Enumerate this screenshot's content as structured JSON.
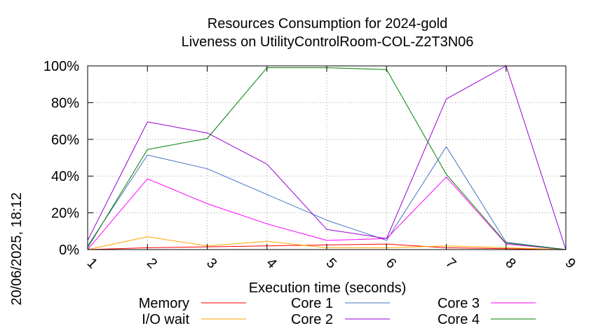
{
  "chart_data": {
    "type": "line",
    "title": "Resources Consumption for 2024-gold",
    "subtitle": "Liveness on UtilityControlRoom-COL-Z2T3N06",
    "xlabel": "Execution time (seconds)",
    "ylabel": "",
    "side_label": "20/06/2025, 18:12",
    "x": [
      1,
      2,
      3,
      4,
      5,
      6,
      7,
      8,
      9
    ],
    "xlim": [
      1,
      9
    ],
    "ylim": [
      0,
      100
    ],
    "x_ticks": [
      "1",
      "2",
      "3",
      "4",
      "5",
      "6",
      "7",
      "8",
      "9"
    ],
    "y_ticks": [
      "0%",
      "20%",
      "40%",
      "60%",
      "80%",
      "100%"
    ],
    "y_tick_values": [
      0,
      20,
      40,
      60,
      80,
      100
    ],
    "grid": true,
    "legend_position": "bottom",
    "series": [
      {
        "name": "Memory",
        "color": "#ff0000",
        "values": [
          0,
          1,
          1.5,
          2,
          2.5,
          3,
          1,
          0.5,
          0
        ]
      },
      {
        "name": "I/O wait",
        "color": "#ffa500",
        "values": [
          0,
          7,
          2,
          4.5,
          1,
          1,
          2,
          1,
          0
        ]
      },
      {
        "name": "Core 1",
        "color": "#4472c4",
        "values": [
          2,
          51.5,
          44,
          30,
          16,
          5,
          56,
          4,
          0
        ]
      },
      {
        "name": "Core 2",
        "color": "#9400d3",
        "values": [
          5,
          69.5,
          63.5,
          46.5,
          11,
          6,
          82,
          100,
          0
        ]
      },
      {
        "name": "Core 3",
        "color": "#ff00ff",
        "values": [
          0,
          38.5,
          25,
          14,
          5,
          6,
          39.5,
          3,
          0
        ]
      },
      {
        "name": "Core 4",
        "color": "#008000",
        "values": [
          1,
          54.5,
          60.5,
          99,
          99,
          98,
          41,
          3.5,
          0
        ]
      }
    ]
  }
}
